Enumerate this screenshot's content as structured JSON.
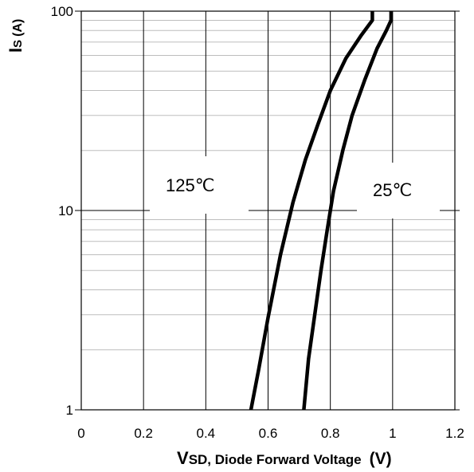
{
  "chart_data": {
    "type": "line",
    "title": "",
    "x_axis": {
      "label_main": "V",
      "label_sub": "SD, Diode Forward Voltage",
      "label_unit": "(V)",
      "range": [
        0,
        1.2
      ],
      "ticks": [
        0,
        0.2,
        0.4,
        0.6,
        0.8,
        1.0,
        1.2
      ],
      "tick_labels": [
        "0",
        "0.2",
        "0.4",
        "0.6",
        "0.8",
        "1",
        "1.2"
      ]
    },
    "y_axis": {
      "label_main": "I",
      "label_sub": "S",
      "label_unit": "(A)",
      "scale": "log",
      "range": [
        1,
        100
      ],
      "ticks": [
        1,
        10,
        100
      ],
      "tick_labels": [
        "1",
        "10",
        "100"
      ]
    },
    "grid": true,
    "series": [
      {
        "name": "125℃",
        "x": [
          0.545,
          0.57,
          0.6,
          0.64,
          0.68,
          0.72,
          0.76,
          0.8,
          0.85,
          0.9,
          0.935,
          0.935
        ],
        "y": [
          1,
          1.6,
          2.9,
          6.0,
          11.0,
          18.0,
          27.0,
          40.0,
          58.0,
          76.0,
          90.0,
          100
        ]
      },
      {
        "name": "25℃",
        "x": [
          0.715,
          0.73,
          0.75,
          0.77,
          0.79,
          0.81,
          0.84,
          0.87,
          0.91,
          0.95,
          0.98,
          0.995,
          0.995
        ],
        "y": [
          1,
          1.8,
          3.0,
          5.0,
          8.0,
          12.5,
          20.0,
          30.0,
          45.0,
          65.0,
          80.0,
          90.0,
          100
        ]
      }
    ]
  }
}
